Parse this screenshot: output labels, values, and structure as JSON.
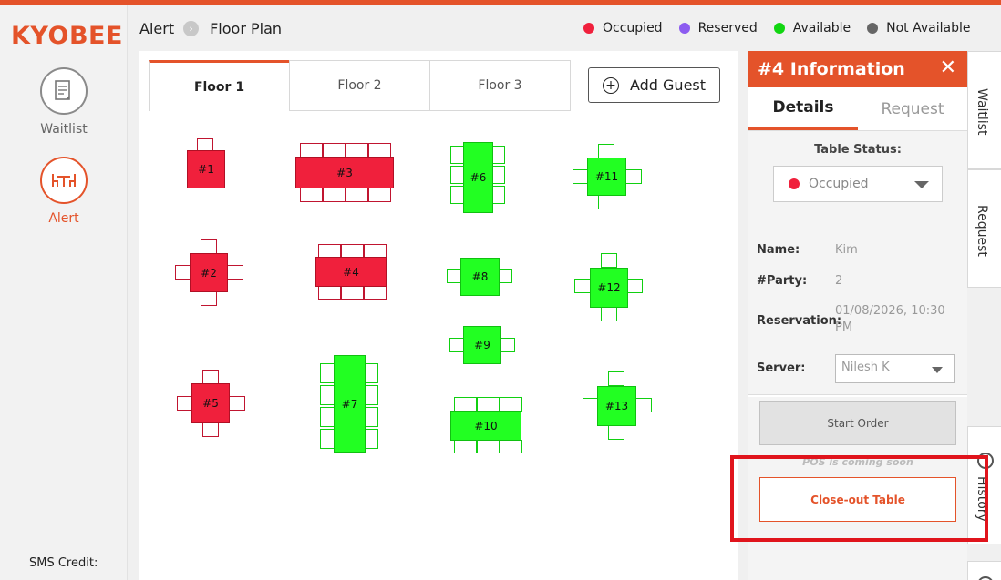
{
  "brand": "KYOBEE",
  "nav": {
    "waitlist_label": "Waitlist",
    "alert_label": "Alert",
    "sms_credit": "SMS Credit:"
  },
  "breadcrumb": {
    "parent": "Alert",
    "current": "Floor Plan"
  },
  "legend": [
    {
      "label": "Occupied",
      "color": "#f0203c"
    },
    {
      "label": "Reserved",
      "color": "#8c5cf0"
    },
    {
      "label": "Available",
      "color": "#11d611"
    },
    {
      "label": "Not Available",
      "color": "#666666"
    }
  ],
  "floor_tabs": [
    "Floor 1",
    "Floor 2",
    "Floor 3"
  ],
  "add_guest_label": "Add Guest",
  "tables": [
    {
      "label": "#1",
      "status": "occupied"
    },
    {
      "label": "#2",
      "status": "occupied"
    },
    {
      "label": "#3",
      "status": "occupied"
    },
    {
      "label": "#4",
      "status": "occupied"
    },
    {
      "label": "#5",
      "status": "occupied"
    },
    {
      "label": "#6",
      "status": "available"
    },
    {
      "label": "#7",
      "status": "available"
    },
    {
      "label": "#8",
      "status": "available"
    },
    {
      "label": "#9",
      "status": "available"
    },
    {
      "label": "#10",
      "status": "available"
    },
    {
      "label": "#11",
      "status": "available"
    },
    {
      "label": "#12",
      "status": "available"
    },
    {
      "label": "#13",
      "status": "available"
    }
  ],
  "info": {
    "title": "#4 Information",
    "tabs": [
      "Details",
      "Request"
    ],
    "status_label": "Table Status:",
    "status_value": "Occupied",
    "name_label": "Name:",
    "name_value": "Kim",
    "party_label": "#Party:",
    "party_value": "2",
    "reservation_label": "Reservation:",
    "reservation_value": "01/08/2026, 10:30 PM",
    "server_label": "Server:",
    "server_value": "Nilesh K",
    "start_order_label": "Start Order",
    "pos_note": "POS is coming soon",
    "close_out_label": "Close-out Table"
  },
  "side_tabs": [
    "Waitlist",
    "Request",
    "History"
  ]
}
